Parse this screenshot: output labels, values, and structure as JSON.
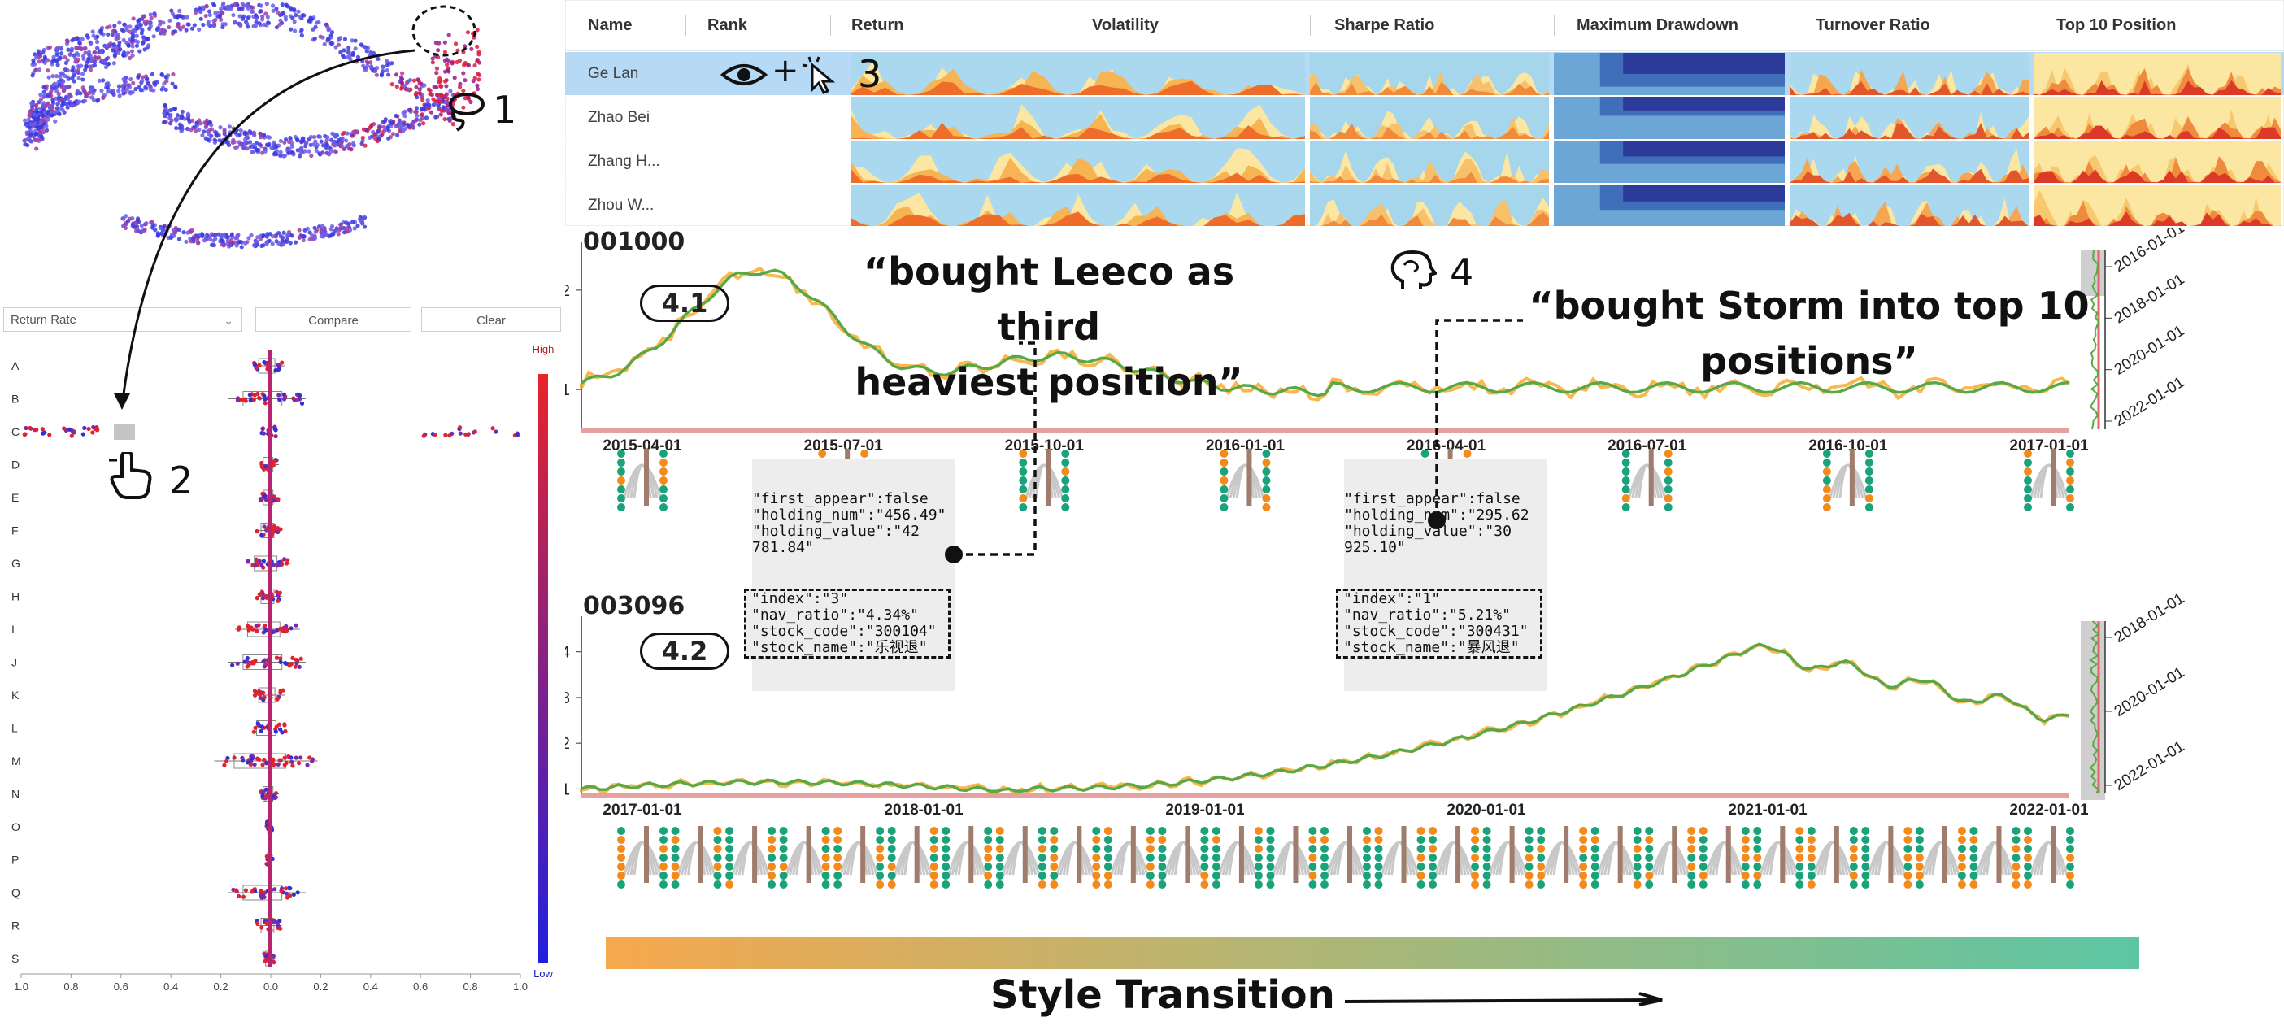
{
  "toolbar": {
    "metric_select": "Return Rate",
    "compare_label": "Compare",
    "clear_label": "Clear"
  },
  "boxplot": {
    "categories": [
      "A",
      "B",
      "C",
      "D",
      "E",
      "F",
      "G",
      "H",
      "I",
      "J",
      "K",
      "L",
      "M",
      "N",
      "O",
      "P",
      "Q",
      "R",
      "S"
    ],
    "x_ticks": [
      "1.0",
      "0.8",
      "0.6",
      "0.4",
      "0.2",
      "0.0",
      "0.2",
      "0.4",
      "0.6",
      "0.8",
      "1.0"
    ],
    "legend_high": "High",
    "legend_low": "Low",
    "colors": {
      "high": "#e8232a",
      "low": "#2020e0"
    }
  },
  "table": {
    "columns": [
      "Name",
      "Rank",
      "Return",
      "Volatility",
      "Sharpe Ratio",
      "Maximum Drawdown",
      "Turnover Ratio",
      "Top 10 Position"
    ],
    "rows": [
      {
        "name": "Ge Lan",
        "selected": true
      },
      {
        "name": "Zhao Bei",
        "selected": false
      },
      {
        "name": "Zhang H...",
        "selected": false
      },
      {
        "name": "Zhou W...",
        "selected": false
      }
    ],
    "selected_color": "#b6d9f5"
  },
  "steps": {
    "s1": "1",
    "s2": "2",
    "s3": "3",
    "s4": "4",
    "plus": "+"
  },
  "timeline1": {
    "fund_code": "001000",
    "badge": "4.1",
    "y_ticks": [
      "2",
      "1"
    ],
    "x_ticks": [
      "2015-04-01",
      "2015-07-01",
      "2015-10-01",
      "2016-01-01",
      "2016-04-01",
      "2016-07-01",
      "2016-10-01",
      "2017-01-01"
    ],
    "side_ticks": [
      "2016-01-01",
      "2018-01-01",
      "2020-01-01",
      "2022-01-01"
    ],
    "quote_a_line1": "“bought Leeco as third",
    "quote_a_line2": "heaviest position”",
    "quote_b_line1": "“bought Storm into top 10",
    "quote_b_line2": "positions”",
    "tooltip_a": {
      "top": "\"first_appear\":false\n\"holding_num\":\"456.49\"\n\"holding_value\":\"42\n781.84\"",
      "box": "\"index\":\"3\"\n\"nav_ratio\":\"4.34%\"\n\"stock_code\":\"300104\"\n\"stock_name\":\"乐视退\""
    },
    "tooltip_b": {
      "top": "\"first_appear\":false\n\"holding_num\":\"295.62\n\"holding_value\":\"30\n925.10\"",
      "box": "\"index\":\"1\"\n\"nav_ratio\":\"5.21%\"\n\"stock_code\":\"300431\"\n\"stock_name\":\"暴风退\""
    }
  },
  "timeline2": {
    "fund_code": "003096",
    "badge": "4.2",
    "y_ticks": [
      "4",
      "3",
      "2",
      "1"
    ],
    "x_ticks": [
      "2017-01-01",
      "2018-01-01",
      "2019-01-01",
      "2020-01-01",
      "2021-01-01",
      "2022-01-01"
    ],
    "side_ticks": [
      "2018-01-01",
      "2020-01-01",
      "2022-01-01"
    ],
    "style_transition": "Style Transition"
  },
  "colors": {
    "nav_line": "#5aa845",
    "nav_fill": "#f6a623",
    "dot_green": "#1aa37a",
    "dot_orange": "#f28a1c",
    "gradient_start": "#f6a84e",
    "gradient_end": "#5cc6a4"
  }
}
